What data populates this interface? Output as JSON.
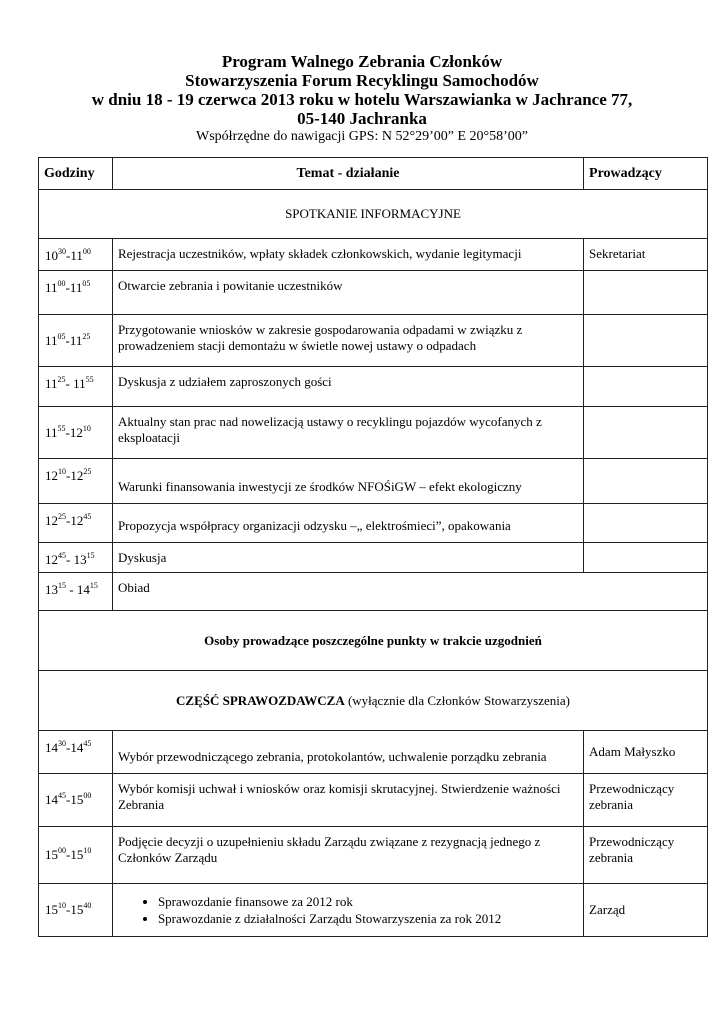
{
  "title": {
    "line1": "Program Walnego Zebrania Członków",
    "line2": "Stowarzyszenia Forum Recyklingu Samochodów",
    "line3": "w dniu 18 - 19 czerwca 2013 roku w hotelu Warszawianka w Jachrance 77,",
    "line4": "05-140 Jachranka",
    "gps": "Współrzędne do nawigacji GPS:  N 52°29’00” E 20°58’00”"
  },
  "table": {
    "headers": [
      "Godziny",
      "Temat - działanie",
      "Prowadzący"
    ],
    "section1": "SPOTKANIE INFORMACYJNE",
    "rows1": [
      {
        "sh": "10",
        "sm": "30",
        "sep": "-",
        "eh": "11",
        "em": "00",
        "topic": "Rejestracja uczestników, wpłaty składek członkowskich, wydanie legitymacji",
        "lead": "Sekretariat"
      },
      {
        "sh": "11",
        "sm": "00",
        "sep": "-",
        "eh": "11",
        "em": "05",
        "topic": "Otwarcie zebrania i powitanie uczestników",
        "lead": ""
      },
      {
        "sh": "11",
        "sm": "05",
        "sep": "-",
        "eh": "11",
        "em": "25",
        "topic": "Przygotowanie wniosków w zakresie gospodarowania odpadami w związku z prowadzeniem  stacji demontażu w świetle nowej ustawy o odpadach",
        "lead": ""
      },
      {
        "sh": "11",
        "sm": "25",
        "sep": "- ",
        "eh": "11",
        "em": "55",
        "topic": "Dyskusja z udziałem zaproszonych gości",
        "lead": ""
      },
      {
        "sh": "11",
        "sm": "55",
        "sep": "-",
        "eh": "12",
        "em": "10",
        "topic": "Aktualny stan prac nad nowelizacją ustawy o recyklingu pojazdów wycofanych z eksploatacji",
        "lead": ""
      },
      {
        "sh": "12",
        "sm": "10",
        "sep": "-",
        "eh": "12",
        "em": "25",
        "topic": "Warunki finansowania inwestycji ze środków NFOŚiGW – efekt ekologiczny",
        "lead": ""
      },
      {
        "sh": "12",
        "sm": "25",
        "sep": "-",
        "eh": "12",
        "em": "45",
        "topic": "Propozycja współpracy organizacji odzysku –„ elektrośmieci”, opakowania",
        "lead": ""
      },
      {
        "sh": "12",
        "sm": "45",
        "sep": "- ",
        "eh": "13",
        "em": "15",
        "topic": "Dyskusja",
        "lead": ""
      }
    ],
    "lunch": {
      "sh": "13",
      "sm": "15",
      "sep": " - ",
      "eh": "14",
      "em": "15",
      "topic": "Obiad"
    },
    "note": "Osoby prowadzące poszczególne punkty w trakcie uzgodnień",
    "section2_bold": "CZĘŚĆ SPRAWOZDAWCZA",
    "section2_rest": " (wyłącznie dla Członków Stowarzyszenia)",
    "rows2": [
      {
        "sh": "14",
        "sm": "30",
        "sep": "-",
        "eh": "14",
        "em": "45",
        "topic": "Wybór przewodniczącego zebrania, protokolantów, uchwalenie porządku zebrania",
        "lead": "Adam Małyszko"
      },
      {
        "sh": "14",
        "sm": "45",
        "sep": "-",
        "eh": "15",
        "em": "00",
        "topic": "Wybór komisji uchwał i wniosków oraz komisji skrutacyjnej. Stwierdzenie ważności Zebrania",
        "lead": "Przewodniczący zebrania"
      },
      {
        "sh": "15",
        "sm": "00",
        "sep": "-",
        "eh": "15",
        "em": "10",
        "topic": "Podjęcie decyzji o uzupełnieniu składu Zarządu związane z rezygnacją jednego z Członków Zarządu",
        "lead": "Przewodniczący zebrania"
      },
      {
        "sh": "15",
        "sm": "10",
        "sep": "-",
        "eh": "15",
        "em": "40",
        "bullets": [
          "Sprawozdanie finansowe za 2012 rok",
          "Sprawozdanie z działalności Zarządu Stowarzyszenia za rok 2012"
        ],
        "lead": "Zarząd"
      }
    ]
  }
}
